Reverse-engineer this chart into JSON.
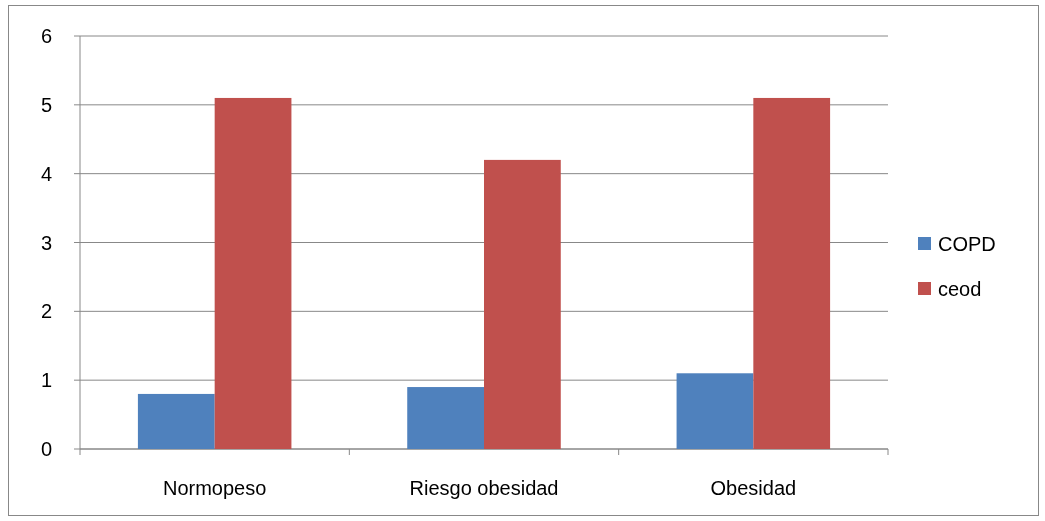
{
  "chart_data": {
    "type": "bar",
    "categories": [
      "Normopeso",
      "Riesgo obesidad",
      "Obesidad"
    ],
    "series": [
      {
        "name": "COPD",
        "color": "#4f81bd",
        "values": [
          0.8,
          0.9,
          1.1
        ]
      },
      {
        "name": "ceod",
        "color": "#c0504d",
        "values": [
          5.1,
          4.2,
          5.1
        ]
      }
    ],
    "ylim": [
      0,
      6
    ],
    "yticks": [
      0,
      1,
      2,
      3,
      4,
      5,
      6
    ],
    "grid": "y",
    "legend": "right"
  }
}
